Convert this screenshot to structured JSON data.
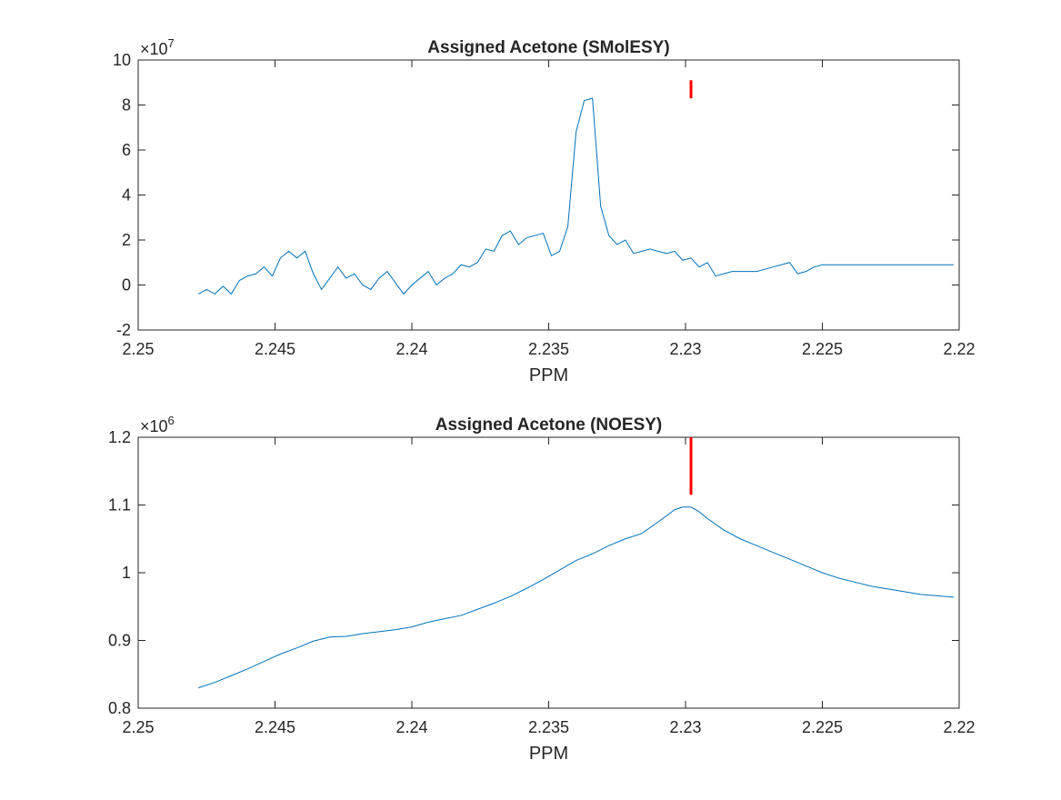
{
  "colors": {
    "series": "#0072BD",
    "marker": "#FF0000",
    "axes": "#262626",
    "background": "#FFFFFF"
  },
  "chart_data": [
    {
      "type": "line",
      "title": "Assigned Acetone (SMolESY)",
      "xlabel": "PPM",
      "ylabel": "",
      "x_reversed": true,
      "xlim": [
        2.22,
        2.25
      ],
      "ylim": [
        -2,
        10
      ],
      "y_exponent": "7",
      "x_ticks": [
        2.25,
        2.245,
        2.24,
        2.235,
        2.23,
        2.225,
        2.22
      ],
      "x_tick_labels": [
        "2.25",
        "2.245",
        "2.24",
        "2.235",
        "2.23",
        "2.225",
        "2.22"
      ],
      "y_ticks": [
        -2,
        0,
        2,
        4,
        6,
        8,
        10
      ],
      "y_tick_labels": [
        "-2",
        "0",
        "2",
        "4",
        "6",
        "8",
        "10"
      ],
      "grid": false,
      "marker_line": {
        "x": 2.2298,
        "y_from": 8.3,
        "y_to": 9.1
      },
      "series": [
        {
          "x": [
            2.2478,
            2.2475,
            2.2472,
            2.2469,
            2.2466,
            2.2463,
            2.246,
            2.2457,
            2.2454,
            2.2451,
            2.2448,
            2.2445,
            2.2442,
            2.2439,
            2.2436,
            2.2433,
            2.243,
            2.2427,
            2.2424,
            2.2421,
            2.2418,
            2.2415,
            2.2412,
            2.2409,
            2.2406,
            2.2403,
            2.24,
            2.2397,
            2.2394,
            2.2391,
            2.2388,
            2.2385,
            2.2382,
            2.2379,
            2.2376,
            2.2373,
            2.237,
            2.2367,
            2.2364,
            2.2361,
            2.2358,
            2.2355,
            2.2352,
            2.2349,
            2.2346,
            2.2343,
            2.234,
            2.2337,
            2.2334,
            2.2331,
            2.2328,
            2.2325,
            2.2322,
            2.2319,
            2.2316,
            2.2313,
            2.231,
            2.2307,
            2.2304,
            2.2301,
            2.2298,
            2.2295,
            2.2292,
            2.2289,
            2.2286,
            2.2283,
            2.228,
            2.2277,
            2.2274,
            2.2271,
            2.2268,
            2.2265,
            2.2262,
            2.2259,
            2.2256,
            2.2253,
            2.225,
            2.2247,
            2.2244,
            2.2241,
            2.2238,
            2.2235,
            2.2232,
            2.2229,
            2.2226,
            2.2223,
            2.222,
            2.2217,
            2.2214,
            2.2211,
            2.2208,
            2.2205,
            2.2202
          ],
          "y": [
            -0.4,
            -0.2,
            -0.4,
            -0.05,
            -0.4,
            0.2,
            0.4,
            0.5,
            0.8,
            0.4,
            1.2,
            1.5,
            1.2,
            1.5,
            0.5,
            -0.2,
            0.3,
            0.8,
            0.3,
            0.5,
            0.0,
            -0.2,
            0.3,
            0.6,
            0.1,
            -0.4,
            0.0,
            0.3,
            0.6,
            0.0,
            0.3,
            0.5,
            0.9,
            0.8,
            1.0,
            1.6,
            1.5,
            2.2,
            2.4,
            1.8,
            2.1,
            2.2,
            2.3,
            1.3,
            1.5,
            2.6,
            6.8,
            8.2,
            8.3,
            3.5,
            2.2,
            1.8,
            2.0,
            1.4,
            1.5,
            1.6,
            1.5,
            1.4,
            1.5,
            1.1,
            1.2,
            0.8,
            1.0,
            0.4,
            0.5,
            0.6,
            0.6,
            0.6,
            0.6,
            0.7,
            0.8,
            0.9,
            1.0,
            0.5,
            0.6,
            0.8,
            0.9,
            0.9,
            0.9,
            0.9,
            0.9,
            0.9,
            0.9,
            0.9,
            0.9,
            0.9,
            0.9,
            0.9,
            0.9,
            0.9,
            0.9,
            0.9,
            0.9
          ]
        }
      ]
    },
    {
      "type": "line",
      "title": "Assigned Acetone (NOESY)",
      "xlabel": "PPM",
      "ylabel": "",
      "x_reversed": true,
      "xlim": [
        2.22,
        2.25
      ],
      "ylim": [
        0.8,
        1.2
      ],
      "y_exponent": "6",
      "x_ticks": [
        2.25,
        2.245,
        2.24,
        2.235,
        2.23,
        2.225,
        2.22
      ],
      "x_tick_labels": [
        "2.25",
        "2.245",
        "2.24",
        "2.235",
        "2.23",
        "2.225",
        "2.22"
      ],
      "y_ticks": [
        0.8,
        0.9,
        1.0,
        1.1,
        1.2
      ],
      "y_tick_labels": [
        "0.8",
        "0.9",
        "1",
        "1.1",
        "1.2"
      ],
      "grid": false,
      "marker_line": {
        "x": 2.2298,
        "y_from": 1.115,
        "y_to": 1.2
      },
      "series": [
        {
          "x": [
            2.2478,
            2.2472,
            2.2466,
            2.246,
            2.2454,
            2.2448,
            2.2442,
            2.2436,
            2.243,
            2.2424,
            2.2418,
            2.2412,
            2.2406,
            2.24,
            2.2394,
            2.2388,
            2.2382,
            2.2376,
            2.237,
            2.2364,
            2.2358,
            2.2352,
            2.2346,
            2.234,
            2.2334,
            2.2328,
            2.2322,
            2.2316,
            2.231,
            2.2304,
            2.2301,
            2.2298,
            2.2295,
            2.2292,
            2.2286,
            2.228,
            2.2274,
            2.2268,
            2.2262,
            2.2256,
            2.225,
            2.2244,
            2.2238,
            2.2232,
            2.2226,
            2.222,
            2.2214,
            2.2208,
            2.2202
          ],
          "y": [
            0.83,
            0.838,
            0.848,
            0.858,
            0.869,
            0.88,
            0.889,
            0.899,
            0.905,
            0.906,
            0.91,
            0.913,
            0.916,
            0.92,
            0.927,
            0.932,
            0.937,
            0.946,
            0.955,
            0.965,
            0.977,
            0.99,
            1.004,
            1.018,
            1.028,
            1.04,
            1.05,
            1.058,
            1.075,
            1.093,
            1.097,
            1.097,
            1.09,
            1.08,
            1.063,
            1.05,
            1.04,
            1.03,
            1.02,
            1.01,
            1.0,
            0.992,
            0.986,
            0.98,
            0.976,
            0.972,
            0.968,
            0.966,
            0.964
          ]
        }
      ]
    }
  ]
}
